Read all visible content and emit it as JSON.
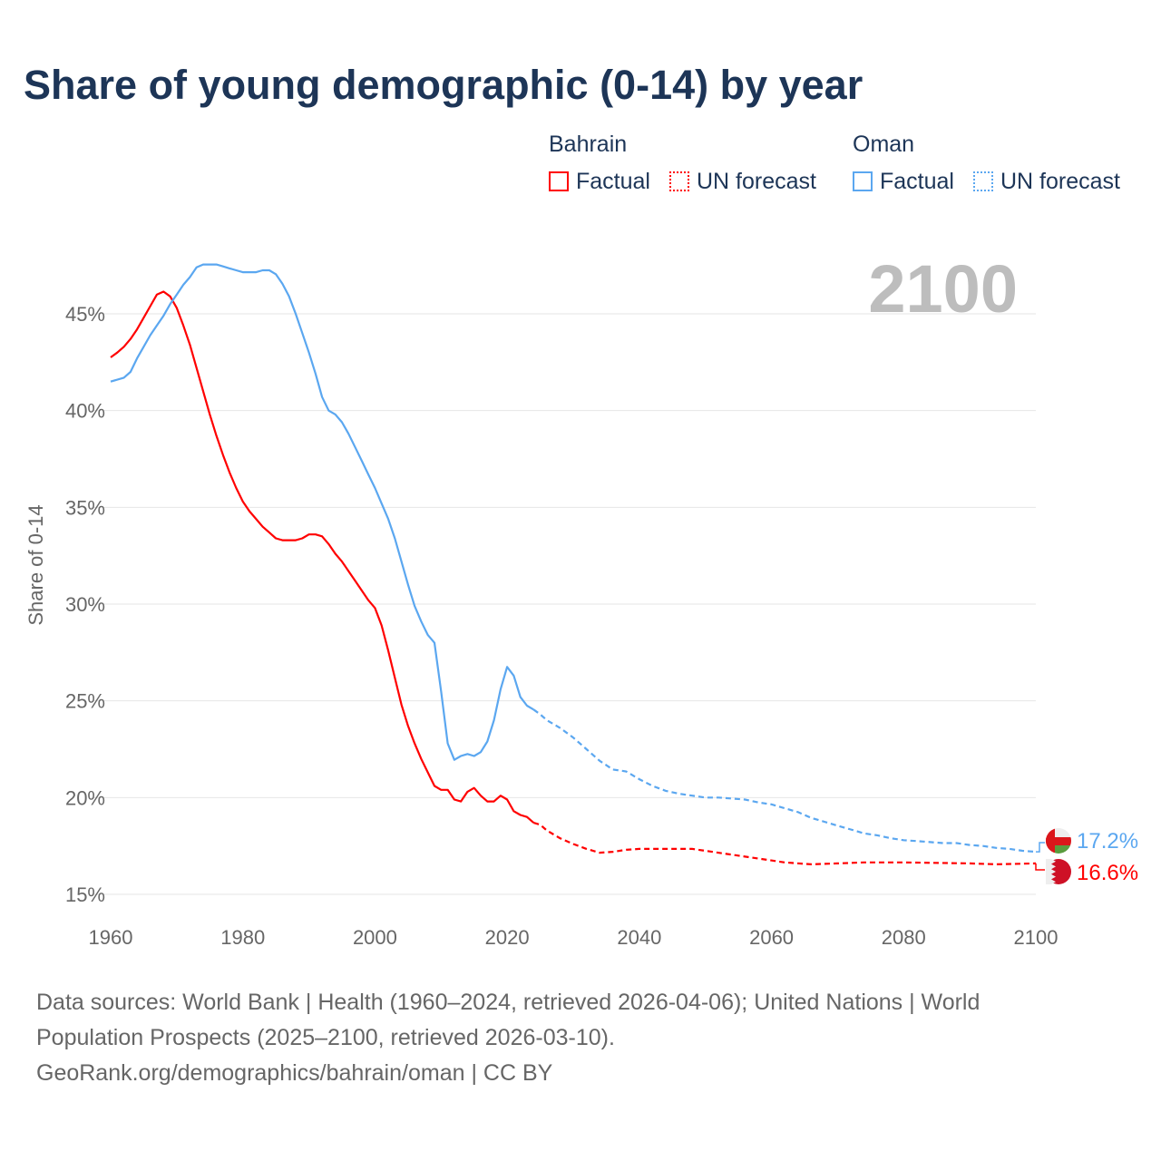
{
  "title": "Share of young demographic (0-14) by year",
  "legend": {
    "groups": [
      {
        "name": "Bahrain",
        "factual": "Factual",
        "forecast": "UN forecast",
        "color": "#ff0000"
      },
      {
        "name": "Oman",
        "factual": "Factual",
        "forecast": "UN forecast",
        "color": "#5ba7f0"
      }
    ]
  },
  "current_year": "2100",
  "end_labels": {
    "oman": "17.2%",
    "bahrain": "16.6%"
  },
  "footer": {
    "line1": "Data sources: World Bank | Health (1960–2024, retrieved 2026-04-06); United Nations | World Population Prospects (2025–2100, retrieved 2026-03-10).",
    "line2": "GeoRank.org/demographics/bahrain/oman | CC BY"
  },
  "chart_data": {
    "type": "line",
    "title": "Share of young demographic (0-14) by year",
    "ylabel": "Share of 0-14",
    "xlabel": "",
    "xlim": [
      1960,
      2100
    ],
    "ylim": [
      15,
      47.5
    ],
    "xticks": [
      "1960",
      "1980",
      "2000",
      "2020",
      "2040",
      "2060",
      "2080",
      "2100"
    ],
    "yticks": [
      "15%",
      "20%",
      "25%",
      "30%",
      "35%",
      "40%",
      "45%"
    ],
    "grid": true,
    "series": [
      {
        "name": "Bahrain",
        "color": "#ff0000",
        "factual": {
          "x": [
            1960,
            1961,
            1962,
            1963,
            1964,
            1965,
            1966,
            1967,
            1968,
            1969,
            1970,
            1971,
            1972,
            1973,
            1974,
            1975,
            1976,
            1977,
            1978,
            1979,
            1980,
            1981,
            1982,
            1983,
            1984,
            1985,
            1986,
            1987,
            1988,
            1989,
            1990,
            1991,
            1992,
            1993,
            1994,
            1995,
            1996,
            1997,
            1998,
            1999,
            2000,
            2001,
            2002,
            2003,
            2004,
            2005,
            2006,
            2007,
            2008,
            2009,
            2010,
            2011,
            2012,
            2013,
            2014,
            2015,
            2016,
            2017,
            2018,
            2019,
            2020,
            2021,
            2022,
            2023,
            2024
          ],
          "y": [
            42.75,
            43.0,
            43.3,
            43.7,
            44.2,
            44.8,
            45.4,
            46.0,
            46.15,
            45.9,
            45.3,
            44.4,
            43.4,
            42.2,
            41.0,
            39.8,
            38.7,
            37.7,
            36.8,
            36.0,
            35.3,
            34.8,
            34.4,
            34.0,
            33.7,
            33.4,
            33.3,
            33.3,
            33.3,
            33.4,
            33.6,
            33.6,
            33.5,
            33.1,
            32.6,
            32.2,
            31.7,
            31.2,
            30.7,
            30.2,
            29.8,
            28.9,
            27.6,
            26.2,
            24.8,
            23.7,
            22.8,
            22.0,
            21.3,
            20.6,
            20.4,
            20.4,
            19.9,
            19.8,
            20.3,
            20.5,
            20.1,
            19.8,
            19.8,
            20.1,
            19.9,
            19.3,
            19.1,
            19.0,
            18.7
          ]
        },
        "forecast": {
          "x": [
            2024,
            2025,
            2026,
            2028,
            2030,
            2032,
            2034,
            2036,
            2038,
            2040,
            2044,
            2048,
            2050,
            2054,
            2058,
            2062,
            2066,
            2070,
            2074,
            2080,
            2090,
            2094,
            2100
          ],
          "y": [
            18.7,
            18.6,
            18.3,
            17.9,
            17.6,
            17.35,
            17.15,
            17.2,
            17.3,
            17.35,
            17.35,
            17.35,
            17.25,
            17.05,
            16.85,
            16.65,
            16.55,
            16.6,
            16.65,
            16.65,
            16.6,
            16.55,
            16.6
          ]
        }
      },
      {
        "name": "Oman",
        "color": "#5ba7f0",
        "factual": {
          "x": [
            1960,
            1962,
            1963,
            1964,
            1965,
            1966,
            1967,
            1968,
            1969,
            1970,
            1971,
            1972,
            1973,
            1974,
            1975,
            1976,
            1977,
            1978,
            1979,
            1980,
            1981,
            1982,
            1983,
            1984,
            1985,
            1986,
            1987,
            1988,
            1989,
            1990,
            1991,
            1992,
            1993,
            1994,
            1995,
            1996,
            1997,
            1998,
            1999,
            2000,
            2001,
            2002,
            2003,
            2004,
            2005,
            2006,
            2007,
            2008,
            2009,
            2010,
            2011,
            2012,
            2013,
            2014,
            2015,
            2016,
            2017,
            2018,
            2019,
            2020,
            2021,
            2022,
            2023,
            2024
          ],
          "y": [
            41.5,
            41.7,
            42.0,
            42.7,
            43.3,
            43.9,
            44.4,
            44.9,
            45.5,
            46.0,
            46.5,
            46.9,
            47.4,
            47.55,
            47.55,
            47.55,
            47.45,
            47.35,
            47.25,
            47.15,
            47.15,
            47.15,
            47.25,
            47.25,
            47.05,
            46.55,
            45.9,
            45.0,
            44.0,
            43.0,
            41.9,
            40.7,
            40.0,
            39.8,
            39.4,
            38.8,
            38.1,
            37.4,
            36.7,
            36.0,
            35.2,
            34.4,
            33.4,
            32.2,
            31.0,
            29.9,
            29.1,
            28.4,
            28.0,
            25.5,
            22.8,
            21.95,
            22.15,
            22.25,
            22.15,
            22.35,
            22.9,
            24.0,
            25.6,
            26.75,
            26.3,
            25.2,
            24.75,
            24.55
          ]
        },
        "forecast": {
          "x": [
            2024,
            2025,
            2026,
            2028,
            2030,
            2032,
            2034,
            2036,
            2038,
            2040,
            2042,
            2044,
            2046,
            2048,
            2050,
            2052,
            2054,
            2056,
            2058,
            2060,
            2062,
            2064,
            2066,
            2068,
            2070,
            2072,
            2074,
            2076,
            2078,
            2080,
            2082,
            2084,
            2086,
            2088,
            2090,
            2092,
            2094,
            2096,
            2098,
            2100
          ],
          "y": [
            24.55,
            24.3,
            24.0,
            23.6,
            23.1,
            22.5,
            21.9,
            21.45,
            21.35,
            20.95,
            20.6,
            20.35,
            20.2,
            20.1,
            20.0,
            20.0,
            19.95,
            19.9,
            19.75,
            19.65,
            19.45,
            19.25,
            18.95,
            18.75,
            18.55,
            18.35,
            18.15,
            18.05,
            17.9,
            17.8,
            17.75,
            17.7,
            17.65,
            17.65,
            17.55,
            17.5,
            17.4,
            17.35,
            17.25,
            17.2
          ]
        }
      }
    ]
  }
}
